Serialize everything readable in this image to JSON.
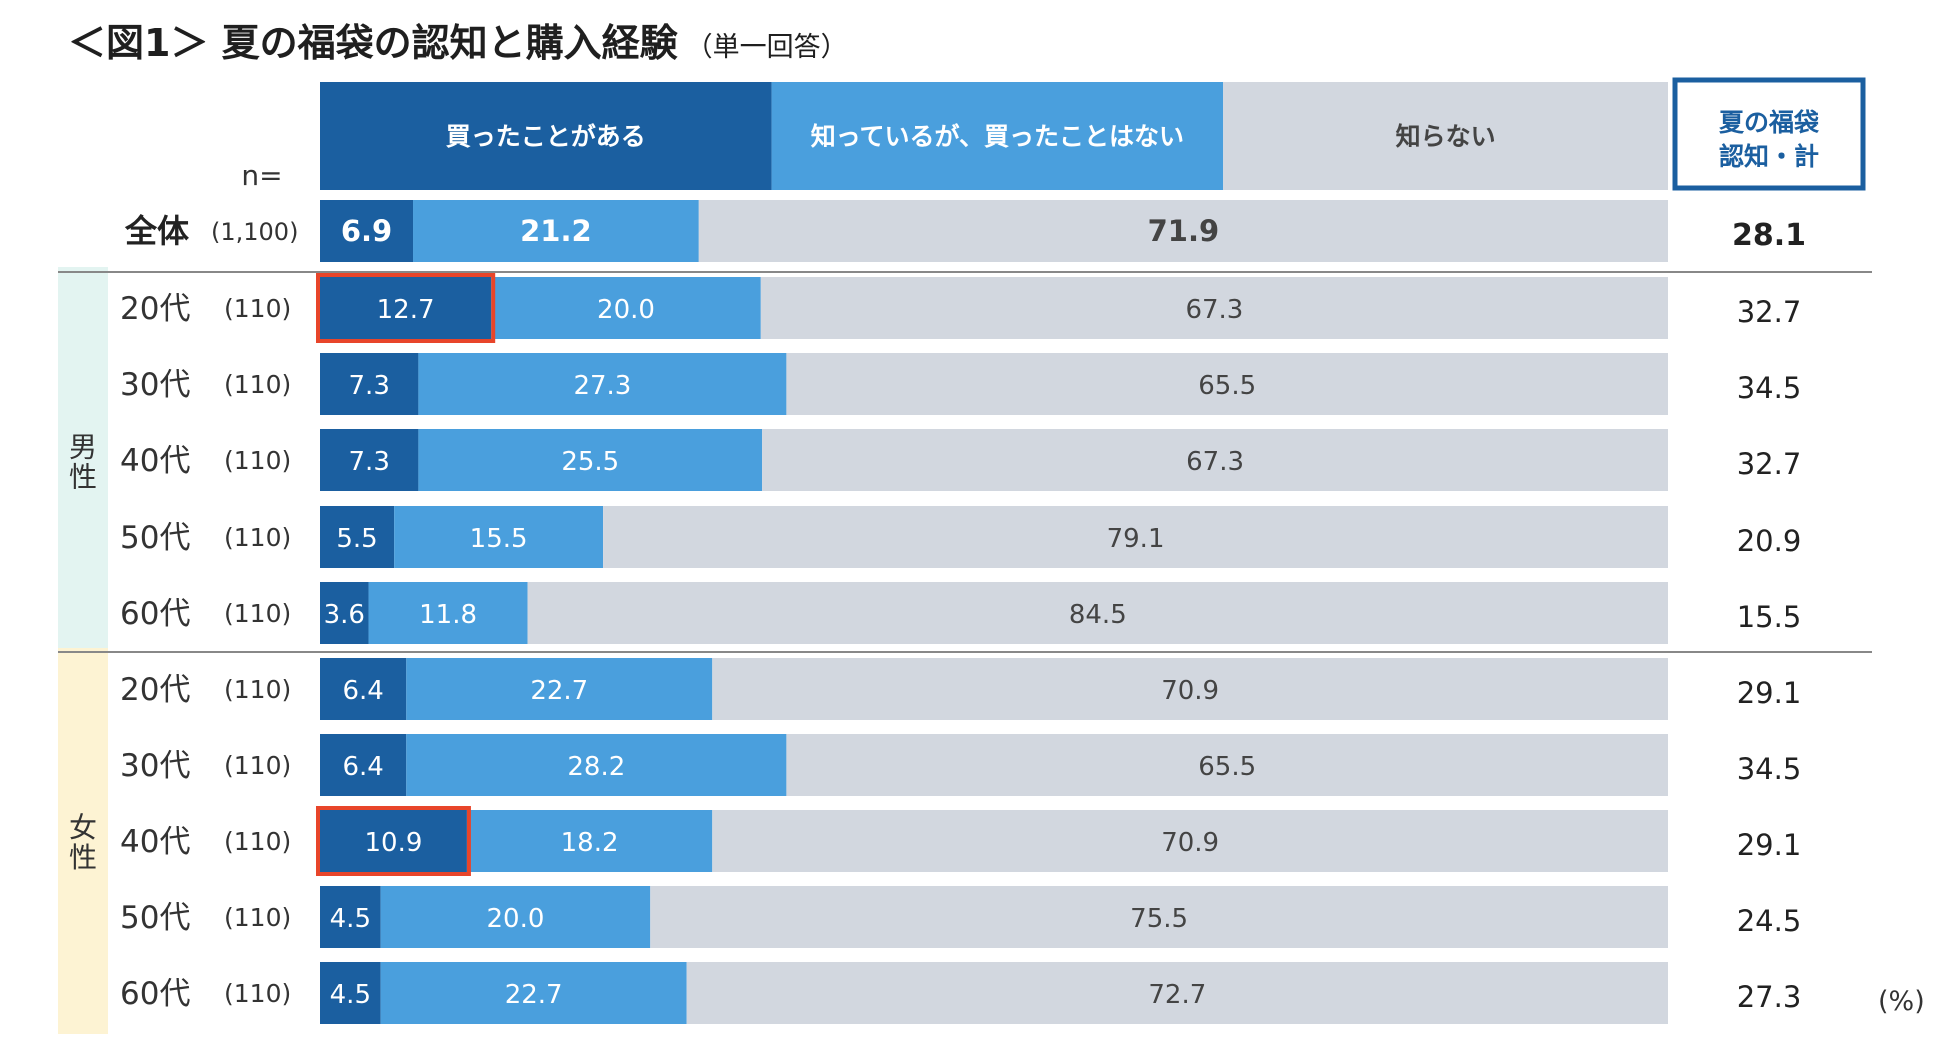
{
  "title": "＜図1＞ 夏の福袋の認知と購入経験",
  "subtitle": "（単一回答）",
  "n_label": "n=",
  "unit_label": "(%)",
  "total_header": "夏の福袋\n認知・計",
  "colors": {
    "bought": "#1b5fa0",
    "known": "#4a9fdd",
    "unknown": "#d2d7df",
    "male_band": "#e3f4f1",
    "female_band": "#fdf3d3",
    "highlight": "#e8452a"
  },
  "chart_data": {
    "type": "stacked-bar-horizontal",
    "series": [
      {
        "name": "買ったことがある",
        "values": [
          6.9,
          12.7,
          7.3,
          7.3,
          5.5,
          3.6,
          6.4,
          6.4,
          10.9,
          4.5,
          4.5
        ]
      },
      {
        "name": "知っているが、買ったことはない",
        "values": [
          21.2,
          20.0,
          27.3,
          25.5,
          15.5,
          11.8,
          22.7,
          28.2,
          18.2,
          20.0,
          22.7
        ]
      },
      {
        "name": "知らない",
        "values": [
          71.9,
          67.3,
          65.5,
          67.3,
          79.1,
          84.5,
          70.9,
          65.5,
          70.9,
          75.5,
          72.7
        ]
      }
    ],
    "rows": [
      {
        "group": "",
        "label": "全体",
        "n": "(1,100)",
        "total": "28.1",
        "bold": true
      },
      {
        "group": "男性",
        "label": "20代",
        "n": "(110)",
        "total": "32.7",
        "highlight": true
      },
      {
        "group": "男性",
        "label": "30代",
        "n": "(110)",
        "total": "34.5"
      },
      {
        "group": "男性",
        "label": "40代",
        "n": "(110)",
        "total": "32.7"
      },
      {
        "group": "男性",
        "label": "50代",
        "n": "(110)",
        "total": "20.9"
      },
      {
        "group": "男性",
        "label": "60代",
        "n": "(110)",
        "total": "15.5"
      },
      {
        "group": "女性",
        "label": "20代",
        "n": "(110)",
        "total": "29.1"
      },
      {
        "group": "女性",
        "label": "30代",
        "n": "(110)",
        "total": "34.5"
      },
      {
        "group": "女性",
        "label": "40代",
        "n": "(110)",
        "total": "29.1",
        "highlight": true
      },
      {
        "group": "女性",
        "label": "50代",
        "n": "(110)",
        "total": "24.5"
      },
      {
        "group": "女性",
        "label": "60代",
        "n": "(110)",
        "total": "27.3"
      }
    ],
    "groups": [
      "男性",
      "女性"
    ],
    "xlim": [
      0,
      100
    ]
  }
}
